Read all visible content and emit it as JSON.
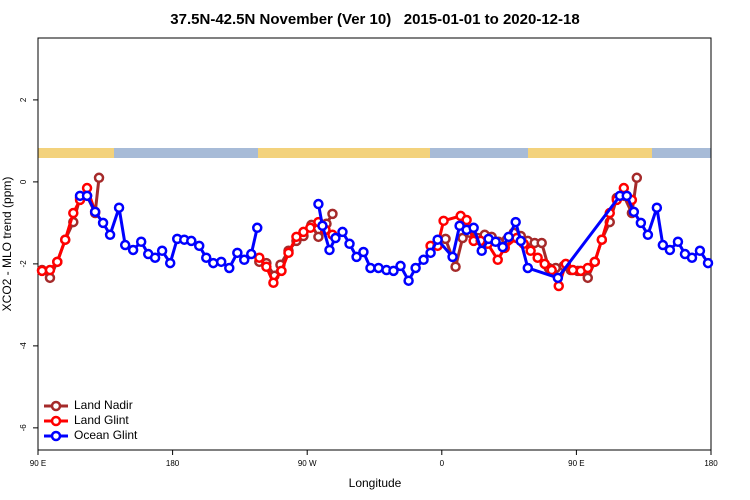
{
  "chart_data": {
    "type": "line",
    "title": "37.5N-42.5N November (Ver 10)   2015-01-01 to 2020-12-18",
    "x_label": "Longitude",
    "y_label": "XCO2 - MLO trend (ppm)",
    "xlim": [
      90,
      540
    ],
    "ylim": [
      -6.54,
      3.51
    ],
    "xticks": [
      {
        "value": 90,
        "label": "90 E"
      },
      180,
      {
        "value": 270,
        "label": "90 W"
      },
      {
        "value": 360,
        "label": "0"
      },
      {
        "value": 450,
        "label": "90 E"
      },
      {
        "value": 540,
        "label": "180"
      }
    ],
    "yticks": [
      -6,
      -4,
      -2,
      0,
      2
    ],
    "legend": "bottom-left",
    "series": [
      {
        "name": "Land Nadir",
        "color": "#a52a2a",
        "x": [
          92.7,
          98.0,
          102.9,
          108.2,
          113.6,
          118.1,
          122.8,
          128.2,
          130.8,
          null,
          238.0,
          242.7,
          248.1,
          252.1,
          257.5,
          262.8,
          267.5,
          272.8,
          277.5,
          282.9,
          286.9,
          null,
          362.5,
          369.2,
          373.9,
          378.6,
          384.0,
          388.7,
          393.3,
          398.0,
          403.4,
          408.1,
          412.8,
          417.5,
          422.1,
          426.8,
          431.5,
          436.2,
          441.5,
          446.2,
          450.9,
          457.6,
          462.3,
          467.0,
          472.3,
          477.0,
          481.7,
          487.1,
          490.4
        ],
        "values": [
          -2.15,
          -2.34,
          -1.95,
          -1.41,
          -0.98,
          -0.39,
          -0.34,
          -0.76,
          0.1,
          null,
          -1.95,
          -1.98,
          -2.29,
          -2.02,
          -1.68,
          -1.44,
          -1.32,
          -1.05,
          -1.34,
          -1.02,
          -0.78,
          null,
          -1.39,
          -2.07,
          -1.37,
          -1.24,
          -1.37,
          -1.29,
          -1.34,
          -1.46,
          -1.41,
          -1.24,
          -1.32,
          -1.44,
          -1.49,
          -1.49,
          -2.1,
          -2.1,
          -2.05,
          -2.15,
          -2.17,
          -2.34,
          -1.95,
          -1.41,
          -0.98,
          -0.39,
          -0.34,
          -0.76,
          0.1
        ]
      },
      {
        "name": "Land Glint",
        "color": "#ff0000",
        "x": [
          92.7,
          98.0,
          102.9,
          108.2,
          113.6,
          118.1,
          122.8,
          128.2,
          null,
          238.0,
          242.7,
          247.4,
          252.8,
          257.5,
          262.8,
          267.5,
          272.1,
          277.5,
          282.2,
          286.9,
          null,
          352.5,
          357.2,
          361.2,
          372.6,
          376.6,
          381.3,
          386.0,
          390.7,
          397.4,
          402.1,
          410.1,
          414.8,
          419.4,
          424.1,
          428.8,
          433.5,
          438.2,
          442.9,
          447.6,
          452.9,
          457.6,
          462.3,
          467.0,
          472.3,
          477.0,
          481.7,
          487.1
        ],
        "values": [
          -2.17,
          -2.15,
          -1.95,
          -1.41,
          -0.76,
          -0.44,
          -0.15,
          -0.73,
          null,
          -1.85,
          -2.07,
          -2.46,
          -2.17,
          -1.73,
          -1.34,
          -1.22,
          -1.12,
          -0.98,
          -1.17,
          -1.29,
          null,
          -1.56,
          -1.56,
          -0.95,
          -0.83,
          -0.93,
          -1.44,
          -1.44,
          -1.51,
          -1.9,
          -1.61,
          -1.37,
          -1.51,
          -1.68,
          -1.85,
          -2.0,
          -2.15,
          -2.54,
          -2.0,
          -2.15,
          -2.17,
          -2.1,
          -1.95,
          -1.41,
          -0.76,
          -0.44,
          -0.15,
          -0.44
        ]
      },
      {
        "name": "Ocean Glint",
        "color": "#0000ff",
        "x": [
          118.1,
          122.8,
          128.2,
          133.5,
          138.2,
          144.2,
          148.3,
          153.6,
          159.0,
          163.7,
          168.3,
          173.0,
          178.4,
          183.1,
          187.8,
          192.5,
          197.8,
          202.5,
          207.2,
          212.5,
          217.9,
          223.3,
          227.9,
          232.6,
          236.6,
          null,
          277.5,
          280.2,
          284.9,
          288.9,
          293.6,
          298.3,
          303.0,
          307.6,
          312.3,
          317.7,
          323.0,
          327.7,
          332.4,
          337.8,
          342.5,
          347.8,
          352.5,
          357.2,
          367.2,
          371.9,
          376.6,
          381.3,
          386.7,
          391.3,
          396.0,
          400.7,
          404.7,
          409.4,
          412.8,
          417.5,
          437.6,
          479.1,
          483.7,
          488.4,
          493.1,
          497.8,
          503.8,
          507.8,
          512.5,
          517.9,
          522.6,
          527.3,
          532.6,
          538.0
        ],
        "values": [
          -0.34,
          -0.34,
          -0.73,
          -1.0,
          -1.29,
          -0.63,
          -1.54,
          -1.66,
          -1.46,
          -1.76,
          -1.85,
          -1.68,
          -1.98,
          -1.39,
          -1.41,
          -1.44,
          -1.56,
          -1.85,
          -1.98,
          -1.95,
          -2.1,
          -1.73,
          -1.9,
          -1.76,
          -1.12,
          null,
          -0.54,
          -1.07,
          -1.66,
          -1.37,
          -1.22,
          -1.51,
          -1.83,
          -1.71,
          -2.1,
          -2.1,
          -2.15,
          -2.17,
          -2.05,
          -2.41,
          -2.1,
          -1.9,
          -1.73,
          -1.41,
          -1.83,
          -1.07,
          -1.17,
          -1.12,
          -1.68,
          -1.39,
          -1.46,
          -1.59,
          -1.34,
          -0.98,
          -1.44,
          -2.1,
          -2.34,
          -0.34,
          -0.34,
          -0.73,
          -1.0,
          -1.29,
          -0.63,
          -1.54,
          -1.66,
          -1.46,
          -1.76,
          -1.85,
          -1.68,
          -1.98
        ]
      }
    ]
  }
}
